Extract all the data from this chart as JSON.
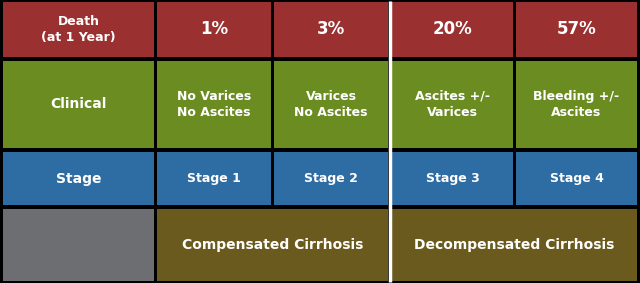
{
  "background_color": "#000000",
  "colors": {
    "gray": "#6d6e71",
    "brown": "#6b5a1e",
    "blue": "#2e6da4",
    "green": "#6b8c21",
    "red": "#9b3030"
  },
  "header_row": {
    "compensated_text": "Compensated Cirrhosis",
    "decompensated_text": "Decompensated Cirrhosis"
  },
  "stage_row": {
    "col0_text": "Stage",
    "cols": [
      "Stage 1",
      "Stage 2",
      "Stage 3",
      "Stage 4"
    ]
  },
  "clinical_row": {
    "col0_text": "Clinical",
    "cols": [
      "No Varices\nNo Ascites",
      "Varices\nNo Ascites",
      "Ascites +/-\nVarices",
      "Bleeding +/-\nAscites"
    ]
  },
  "death_row": {
    "col0_text": "Death\n(at 1 Year)",
    "cols": [
      "1%",
      "3%",
      "20%",
      "57%"
    ]
  },
  "text_color": "#ffffff",
  "divider_color": "#ffffff",
  "fig_width": 6.4,
  "fig_height": 2.83,
  "dpi": 100
}
